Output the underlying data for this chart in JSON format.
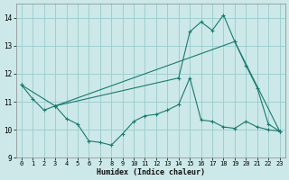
{
  "xlabel": "Humidex (Indice chaleur)",
  "bg_color": "#cce8e8",
  "grid_color": "#99cccc",
  "line_color": "#1a7a6e",
  "xlim": [
    -0.5,
    23.5
  ],
  "ylim": [
    9.0,
    14.5
  ],
  "yticks": [
    9,
    10,
    11,
    12,
    13,
    14
  ],
  "xticks": [
    0,
    1,
    2,
    3,
    4,
    5,
    6,
    7,
    8,
    9,
    10,
    11,
    12,
    13,
    14,
    15,
    16,
    17,
    18,
    19,
    20,
    21,
    22,
    23
  ],
  "line1_x": [
    0,
    1,
    2,
    3,
    4,
    5,
    6,
    7,
    8,
    9,
    10,
    11,
    12,
    13,
    14,
    15,
    16,
    17,
    18,
    19,
    20,
    21,
    22,
    23
  ],
  "line1_y": [
    11.6,
    11.1,
    10.7,
    10.85,
    10.4,
    10.2,
    9.6,
    9.55,
    9.45,
    9.85,
    10.3,
    10.5,
    10.55,
    10.7,
    10.9,
    11.85,
    10.35,
    10.3,
    10.1,
    10.05,
    10.3,
    10.1,
    10.0,
    9.95
  ],
  "line2_x": [
    0,
    3,
    19,
    23
  ],
  "line2_y": [
    11.6,
    10.85,
    13.15,
    9.95
  ],
  "line3_x": [
    3,
    14,
    15,
    16,
    17,
    18,
    19,
    20,
    21,
    22,
    23
  ],
  "line3_y": [
    10.85,
    11.85,
    13.5,
    13.85,
    13.55,
    14.1,
    13.15,
    12.3,
    11.5,
    10.2,
    9.95
  ]
}
